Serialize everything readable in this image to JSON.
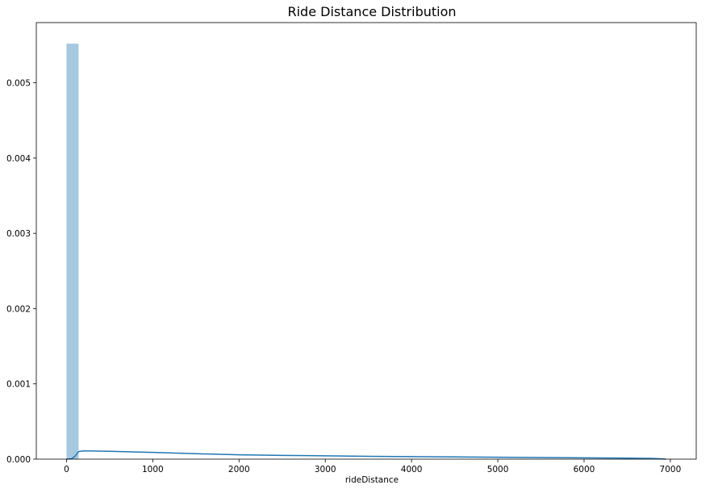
{
  "chart_data": {
    "type": "histogram",
    "title": "Ride Distance Distribution",
    "xlabel": "rideDistance",
    "ylabel": "",
    "xlim": [
      -350,
      7300
    ],
    "ylim": [
      0,
      0.0058
    ],
    "grid": false,
    "legend": "none",
    "x_ticks": [
      0,
      1000,
      2000,
      3000,
      4000,
      5000,
      6000,
      7000
    ],
    "x_tick_labels": [
      "0",
      "1000",
      "2000",
      "3000",
      "4000",
      "5000",
      "6000",
      "7000"
    ],
    "y_ticks": [
      0,
      0.001,
      0.002,
      0.003,
      0.004,
      0.005
    ],
    "y_tick_labels": [
      "0.000",
      "0.001",
      "0.002",
      "0.003",
      "0.004",
      "0.005"
    ],
    "bins": [
      {
        "x0": 0,
        "x1": 140,
        "density": 0.00552
      }
    ],
    "kde": {
      "x": [
        0,
        60,
        100,
        140,
        180,
        300,
        500,
        800,
        1000,
        1500,
        2000,
        2500,
        3000,
        3500,
        4000,
        4500,
        5000,
        5500,
        6000,
        6500,
        6800,
        6900,
        6950
      ],
      "y": [
        0.0,
        5e-06,
        4e-05,
        0.0001,
        0.000108,
        0.000108,
        0.000104,
        9.5e-05,
        9e-05,
        7.2e-05,
        5.8e-05,
        5e-05,
        4.4e-05,
        3.8e-05,
        3.4e-05,
        3e-05,
        2.6e-05,
        2.2e-05,
        1.8e-05,
        1.4e-05,
        1e-05,
        4e-06,
        0.0
      ]
    },
    "colors": {
      "bar_fill": "#a6c8e0",
      "kde_line": "#1f77b4"
    }
  }
}
